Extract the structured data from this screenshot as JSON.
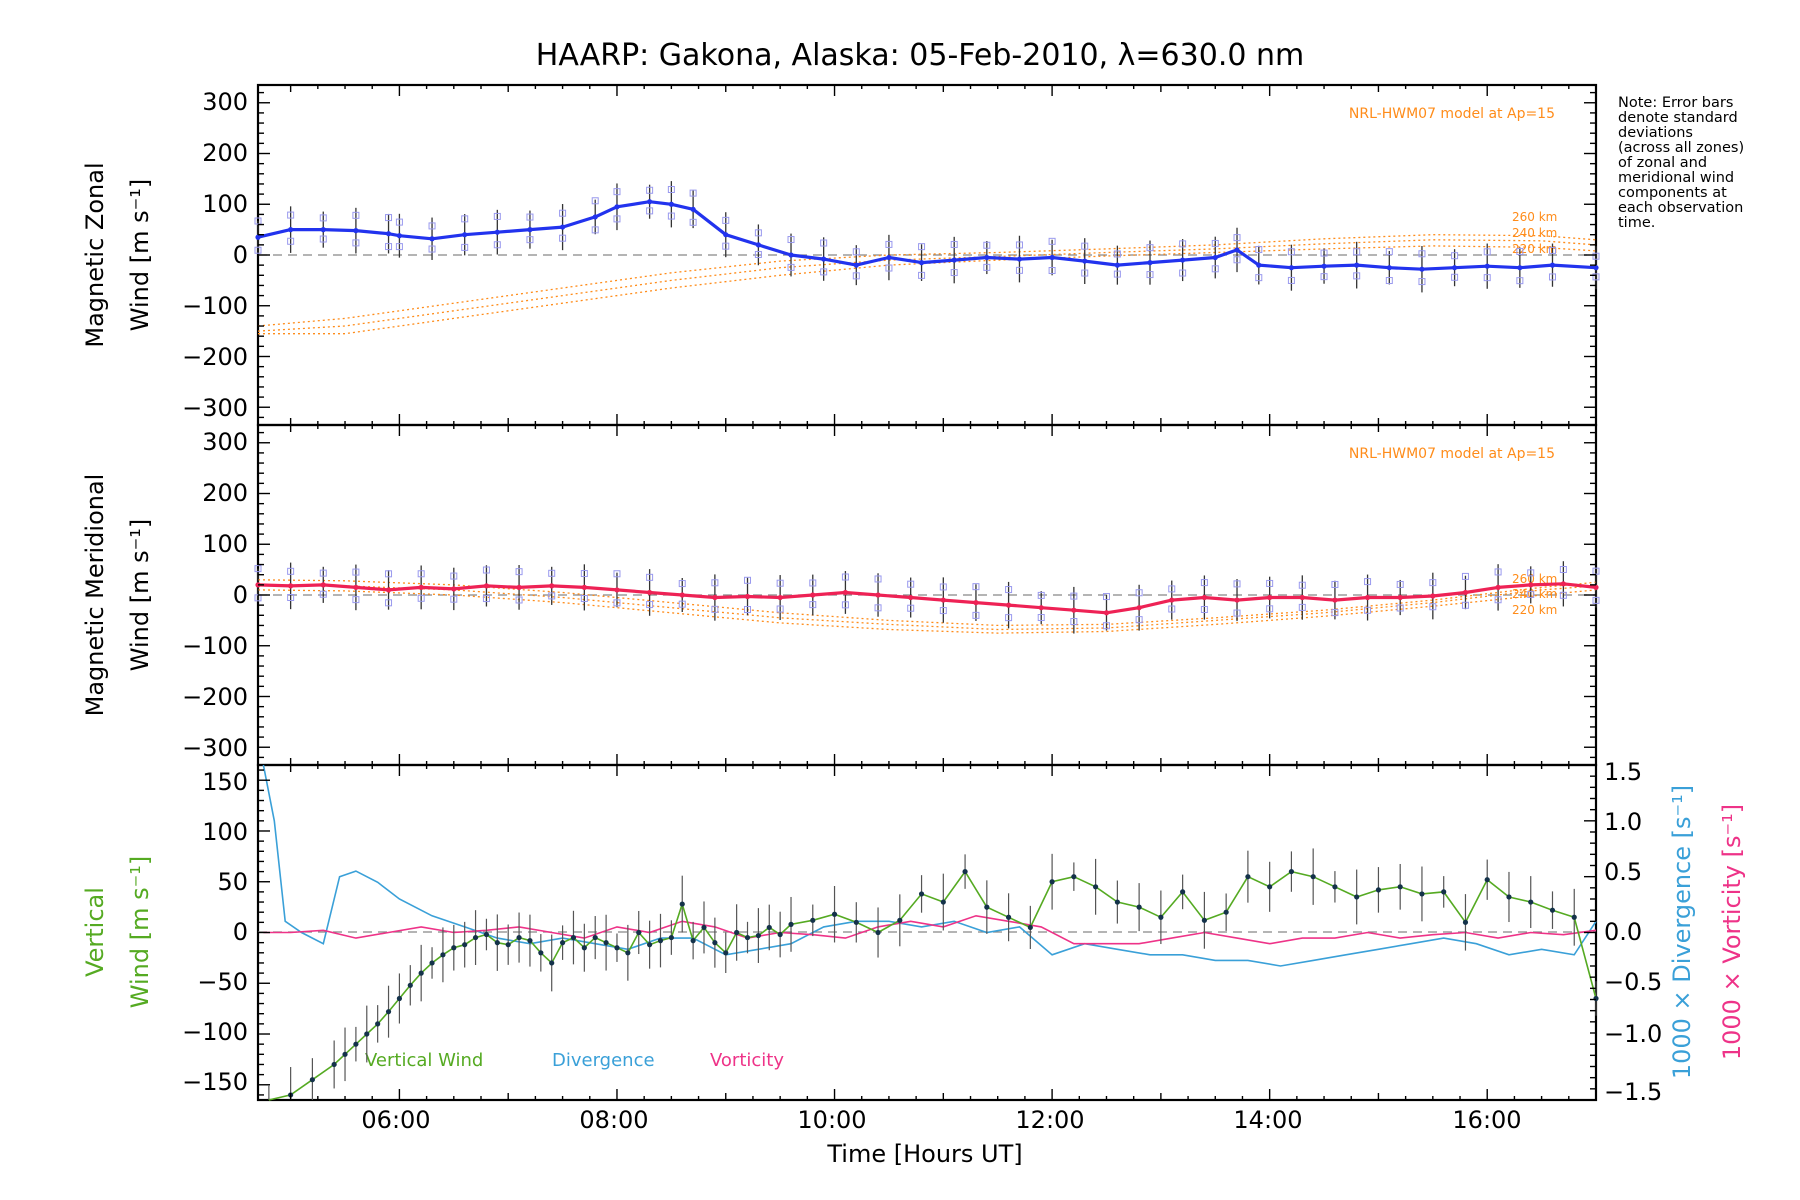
{
  "figure": {
    "title": "HAARP: Gakona,  Alaska: 05-Feb-2010, λ=630.0 nm",
    "note_lines": [
      "Note: Error bars",
      "denote standard",
      "deviations",
      "(across all zones)",
      "of zonal and",
      "meridional wind",
      "components at",
      "each observation",
      "time."
    ],
    "xlabel": "Time [Hours UT]",
    "xticklabels": [
      "06:00",
      "08:00",
      "10:00",
      "12:00",
      "14:00",
      "16:00"
    ]
  },
  "panels": {
    "zonal": {
      "ylabel_line1": "Magnetic Zonal",
      "ylabel_line2": "Wind [m s⁻¹]",
      "model_label": "NRL-HWM07 model at Ap=15",
      "alt_labels": [
        "260 km",
        "240 km",
        "220 km"
      ],
      "yticklabels": [
        "300",
        "200",
        "100",
        "0",
        "−100",
        "−200",
        "−300"
      ]
    },
    "meridional": {
      "ylabel_line1": "Magnetic Meridional",
      "ylabel_line2": "Wind [m s⁻¹]",
      "model_label": "NRL-HWM07 model at Ap=15",
      "alt_labels": [
        "260 km",
        "240 km",
        "220 km"
      ],
      "yticklabels": [
        "300",
        "200",
        "100",
        "0",
        "−100",
        "−200",
        "−300"
      ]
    },
    "vertical": {
      "ylabel_line1": "Vertical",
      "ylabel_line2": "Wind [m s⁻¹]",
      "right_ylabel_div": "1000 × Divergence [s⁻¹]",
      "right_ylabel_vort": "1000 × Vorticity [s⁻¹]",
      "legend": [
        "Vertical Wind",
        "Divergence",
        "Vorticity"
      ],
      "yticklabels": [
        "150",
        "100",
        "50",
        "0",
        "−50",
        "−100",
        "−150"
      ],
      "right_yticklabels": [
        "1.5",
        "1.0",
        "0.5",
        "0.0",
        "−0.5",
        "−1.0",
        "−1.5"
      ]
    }
  },
  "colors": {
    "zonal": "#2233ee",
    "meridional": "#ee2255",
    "model": "#ff8c1a",
    "vertical": "#55aa22",
    "divergence": "#3aa0d8",
    "vorticity": "#ee3388",
    "scatter": "#9999ee"
  },
  "chart_data": [
    {
      "type": "line",
      "title": "HAARP: Gakona,  Alaska: 05-Feb-2010, λ=630.0 nm",
      "xlabel": "",
      "ylabel": "Magnetic Zonal Wind [m s⁻¹]",
      "xlim": [
        4.7,
        17.0
      ],
      "ylim": [
        -335,
        335
      ],
      "series": [
        {
          "name": "zonal",
          "x": [
            4.7,
            5.0,
            5.3,
            5.6,
            5.9,
            6.0,
            6.3,
            6.6,
            6.9,
            7.2,
            7.5,
            7.8,
            8.0,
            8.3,
            8.5,
            8.7,
            9.0,
            9.3,
            9.6,
            9.9,
            10.2,
            10.5,
            10.8,
            11.1,
            11.4,
            11.7,
            12.0,
            12.3,
            12.6,
            12.9,
            13.2,
            13.5,
            13.7,
            13.9,
            14.2,
            14.5,
            14.8,
            15.1,
            15.4,
            15.7,
            16.0,
            16.3,
            16.6,
            17.0
          ],
          "y": [
            35,
            50,
            50,
            48,
            42,
            38,
            32,
            40,
            45,
            50,
            55,
            75,
            95,
            105,
            100,
            90,
            40,
            20,
            0,
            -8,
            -20,
            -5,
            -15,
            -10,
            -5,
            -8,
            -5,
            -12,
            -20,
            -15,
            -10,
            -5,
            10,
            -20,
            -25,
            -22,
            -20,
            -25,
            -28,
            -25,
            -22,
            -25,
            -20,
            -25
          ]
        },
        {
          "name": "model 260 km",
          "x": [
            4.7,
            5.5,
            6.5,
            7.5,
            8.5,
            9.5,
            10.5,
            11.5,
            12.5,
            13.5,
            14.5,
            15.5,
            16.5,
            17.0
          ],
          "y": [
            -140,
            -125,
            -95,
            -65,
            -35,
            -12,
            0,
            5,
            12,
            20,
            32,
            40,
            38,
            30
          ]
        },
        {
          "name": "model 240 km",
          "x": [
            4.7,
            5.5,
            6.5,
            7.5,
            8.5,
            9.5,
            10.5,
            11.5,
            12.5,
            13.5,
            14.5,
            15.5,
            16.5,
            17.0
          ],
          "y": [
            -150,
            -140,
            -110,
            -80,
            -50,
            -25,
            -10,
            -3,
            5,
            12,
            22,
            30,
            28,
            20
          ]
        },
        {
          "name": "model 220 km",
          "x": [
            4.7,
            5.5,
            6.5,
            7.5,
            8.5,
            9.5,
            10.5,
            11.5,
            12.5,
            13.5,
            14.5,
            15.5,
            16.5,
            17.0
          ],
          "y": [
            -155,
            -155,
            -125,
            -95,
            -65,
            -40,
            -20,
            -10,
            -2,
            5,
            12,
            18,
            15,
            8
          ]
        }
      ]
    },
    {
      "type": "line",
      "title": "",
      "xlabel": "",
      "ylabel": "Magnetic Meridional Wind [m s⁻¹]",
      "xlim": [
        4.7,
        17.0
      ],
      "ylim": [
        -335,
        335
      ],
      "series": [
        {
          "name": "meridional",
          "x": [
            4.7,
            5.0,
            5.3,
            5.6,
            5.9,
            6.2,
            6.5,
            6.8,
            7.1,
            7.4,
            7.7,
            8.0,
            8.3,
            8.6,
            8.9,
            9.2,
            9.5,
            9.8,
            10.1,
            10.4,
            10.7,
            11.0,
            11.3,
            11.6,
            11.9,
            12.2,
            12.5,
            12.8,
            13.1,
            13.4,
            13.7,
            14.0,
            14.3,
            14.6,
            14.9,
            15.2,
            15.5,
            15.8,
            16.1,
            16.4,
            16.7,
            17.0
          ],
          "y": [
            20,
            18,
            20,
            15,
            10,
            15,
            12,
            18,
            15,
            18,
            15,
            10,
            5,
            0,
            -5,
            -3,
            -5,
            0,
            5,
            0,
            -5,
            -10,
            -15,
            -20,
            -25,
            -30,
            -35,
            -25,
            -10,
            -5,
            -10,
            -5,
            -5,
            -10,
            -5,
            -5,
            -2,
            5,
            15,
            20,
            22,
            15
          ]
        },
        {
          "name": "model 260 km",
          "x": [
            4.7,
            5.5,
            6.5,
            7.5,
            8.5,
            9.5,
            10.5,
            11.5,
            12.5,
            13.5,
            14.5,
            15.5,
            16.5,
            17.0
          ],
          "y": [
            30,
            28,
            20,
            5,
            -15,
            -35,
            -50,
            -60,
            -58,
            -45,
            -30,
            -10,
            15,
            25
          ]
        },
        {
          "name": "model 240 km",
          "x": [
            4.7,
            5.5,
            6.5,
            7.5,
            8.5,
            9.5,
            10.5,
            11.5,
            12.5,
            13.5,
            14.5,
            15.5,
            16.5,
            17.0
          ],
          "y": [
            20,
            18,
            10,
            -5,
            -25,
            -45,
            -58,
            -68,
            -65,
            -50,
            -35,
            -15,
            10,
            18
          ]
        },
        {
          "name": "model 220 km",
          "x": [
            4.7,
            5.5,
            6.5,
            7.5,
            8.5,
            9.5,
            10.5,
            11.5,
            12.5,
            13.5,
            14.5,
            15.5,
            16.5,
            17.0
          ],
          "y": [
            10,
            8,
            0,
            -15,
            -35,
            -55,
            -68,
            -75,
            -72,
            -58,
            -42,
            -22,
            0,
            10
          ]
        }
      ]
    },
    {
      "type": "line",
      "title": "",
      "xlabel": "Time [Hours UT]",
      "ylabel": "Vertical Wind [m s⁻¹]",
      "xlim": [
        4.7,
        17.0
      ],
      "ylim": [
        -165,
        165
      ],
      "y2lim": [
        -1.5,
        1.5
      ],
      "series": [
        {
          "name": "Vertical Wind",
          "x": [
            4.8,
            5.0,
            5.2,
            5.4,
            5.5,
            5.6,
            5.7,
            5.8,
            5.9,
            6.0,
            6.1,
            6.2,
            6.3,
            6.4,
            6.5,
            6.6,
            6.7,
            6.8,
            6.9,
            7.0,
            7.1,
            7.2,
            7.3,
            7.4,
            7.5,
            7.6,
            7.7,
            7.8,
            7.9,
            8.0,
            8.1,
            8.2,
            8.3,
            8.4,
            8.5,
            8.6,
            8.7,
            8.8,
            8.9,
            9.0,
            9.1,
            9.2,
            9.3,
            9.4,
            9.5,
            9.6,
            9.8,
            10.0,
            10.2,
            10.4,
            10.6,
            10.8,
            11.0,
            11.2,
            11.4,
            11.6,
            11.8,
            12.0,
            12.2,
            12.4,
            12.6,
            12.8,
            13.0,
            13.2,
            13.4,
            13.6,
            13.8,
            14.0,
            14.2,
            14.4,
            14.6,
            14.8,
            15.0,
            15.2,
            15.4,
            15.6,
            15.8,
            16.0,
            16.2,
            16.4,
            16.6,
            16.8,
            17.0
          ],
          "y": [
            -165,
            -160,
            -145,
            -130,
            -120,
            -110,
            -100,
            -90,
            -78,
            -65,
            -52,
            -40,
            -30,
            -22,
            -15,
            -12,
            -5,
            -2,
            -10,
            -12,
            -5,
            -8,
            -20,
            -30,
            -10,
            -5,
            -15,
            -5,
            -10,
            -15,
            -20,
            0,
            -12,
            -8,
            -5,
            28,
            -8,
            5,
            -10,
            -20,
            0,
            -5,
            -3,
            5,
            -2,
            8,
            12,
            18,
            10,
            0,
            12,
            38,
            30,
            60,
            25,
            15,
            5,
            50,
            55,
            45,
            30,
            25,
            15,
            40,
            12,
            20,
            55,
            45,
            60,
            55,
            45,
            35,
            42,
            45,
            38,
            40,
            10,
            52,
            35,
            30,
            22,
            15,
            -65
          ]
        },
        {
          "name": "Divergence",
          "x": [
            4.75,
            4.85,
            4.95,
            5.1,
            5.3,
            5.45,
            5.6,
            5.8,
            6.0,
            6.3,
            6.6,
            6.9,
            7.2,
            7.5,
            7.8,
            8.1,
            8.4,
            8.7,
            9.0,
            9.3,
            9.6,
            9.9,
            10.2,
            10.5,
            10.8,
            11.1,
            11.4,
            11.7,
            12.0,
            12.3,
            12.6,
            12.9,
            13.2,
            13.5,
            13.8,
            14.1,
            14.4,
            14.7,
            15.0,
            15.3,
            15.6,
            15.9,
            16.2,
            16.5,
            16.8,
            17.0
          ],
          "y": [
            1.5,
            1.0,
            0.1,
            0.0,
            -0.1,
            0.5,
            0.55,
            0.45,
            0.3,
            0.15,
            0.05,
            -0.05,
            -0.1,
            -0.05,
            -0.1,
            -0.15,
            -0.05,
            -0.05,
            -0.2,
            -0.15,
            -0.1,
            0.05,
            0.1,
            0.1,
            0.05,
            0.1,
            0.0,
            0.05,
            -0.2,
            -0.1,
            -0.15,
            -0.2,
            -0.2,
            -0.25,
            -0.25,
            -0.3,
            -0.25,
            -0.2,
            -0.15,
            -0.1,
            -0.05,
            -0.1,
            -0.2,
            -0.15,
            -0.2,
            0.1
          ]
        },
        {
          "name": "Vorticity",
          "x": [
            4.75,
            5.0,
            5.3,
            5.6,
            5.9,
            6.2,
            6.5,
            6.8,
            7.1,
            7.4,
            7.7,
            8.0,
            8.3,
            8.6,
            8.9,
            9.2,
            9.5,
            9.8,
            10.1,
            10.4,
            10.7,
            11.0,
            11.3,
            11.6,
            11.9,
            12.2,
            12.5,
            12.8,
            13.1,
            13.4,
            13.7,
            14.0,
            14.3,
            14.6,
            14.9,
            15.2,
            15.5,
            15.8,
            16.1,
            16.4,
            16.7,
            17.0
          ],
          "y": [
            0.0,
            0.0,
            0.02,
            -0.05,
            0.0,
            0.05,
            0.0,
            0.02,
            0.05,
            0.0,
            -0.05,
            0.05,
            0.0,
            0.1,
            0.05,
            -0.05,
            0.0,
            -0.02,
            -0.05,
            0.05,
            0.1,
            0.05,
            0.15,
            0.1,
            0.05,
            -0.1,
            -0.1,
            -0.1,
            -0.05,
            0.0,
            -0.05,
            -0.1,
            -0.05,
            -0.05,
            0.0,
            -0.05,
            -0.02,
            0.0,
            -0.05,
            0.0,
            -0.02,
            0.02
          ]
        }
      ]
    }
  ]
}
